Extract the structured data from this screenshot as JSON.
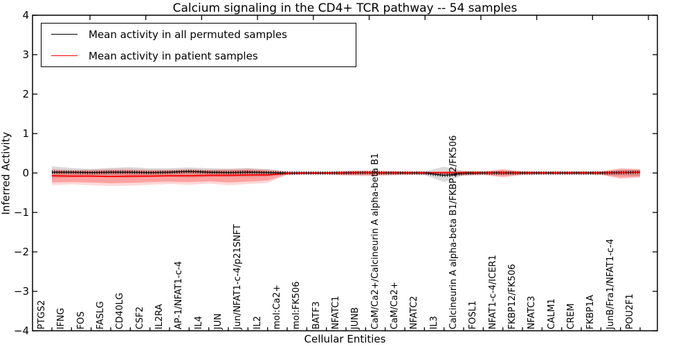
{
  "chart_data": {
    "type": "line",
    "title": "Calcium signaling in the CD4+ TCR pathway -- 54 samples",
    "xlabel": "Cellular Entities",
    "ylabel": "Inferred Activity",
    "ylim": [
      -4,
      4
    ],
    "ytick_labels": [
      "4",
      "3",
      "2",
      "1",
      "0",
      "−1",
      "−2",
      "−3",
      "−4"
    ],
    "grid": false,
    "legend": {
      "position": "upper left",
      "entries": [
        {
          "label": "Mean activity in all permuted samples",
          "color": "#000000"
        },
        {
          "label": "Mean activity in patient samples",
          "color": "#ff0000"
        }
      ]
    },
    "categories": [
      "PTGS2",
      "IFNG",
      "FOS",
      "FASLG",
      "CD40LG",
      "CSF2",
      "IL2RA",
      "AP-1/NFAT1-c-4",
      "IL4",
      "JUN",
      "Jun/NFAT1-c-4/p21SNFT",
      "IL2",
      "mol:Ca2+",
      "mol:FK506",
      "BATF3",
      "NFATC1",
      "JUNB",
      "CaM/Ca2+/Calcineurin A alpha-beta B1",
      "CaM/Ca2+",
      "NFATC2",
      "IL3",
      "Calcineurin A alpha-beta B1/FKBP12/FK506",
      "FOSL1",
      "NFAT1-c-4/ICER1",
      "FKBP12/FK506",
      "NFATC3",
      "CALM1",
      "CREM",
      "FKBP1A",
      "JunB/Fra1/NFAT1-c-4",
      "POU2F1"
    ],
    "series": [
      {
        "name": "Mean activity in all permuted samples",
        "color": "#000000",
        "band_color": "rgba(125,125,125,0.28)",
        "mean": [
          0.02,
          0.02,
          0.01,
          0.02,
          0.02,
          0.01,
          0.02,
          0.04,
          0.02,
          0.01,
          0.02,
          0.01,
          0.0,
          0.0,
          0.0,
          0.0,
          0.01,
          0.0,
          0.0,
          0.0,
          -0.06,
          -0.01,
          0.0,
          0.0,
          0.0,
          0.0,
          0.0,
          0.0,
          0.0,
          0.01,
          0.02
        ],
        "band_upper": [
          0.17,
          0.13,
          0.1,
          0.13,
          0.15,
          0.12,
          0.12,
          0.14,
          0.12,
          0.11,
          0.12,
          0.1,
          0.04,
          0.03,
          0.03,
          0.04,
          0.04,
          0.03,
          0.03,
          0.04,
          0.16,
          0.05,
          0.04,
          0.05,
          0.04,
          0.03,
          0.03,
          0.04,
          0.04,
          0.07,
          0.09
        ],
        "band_lower": [
          -0.13,
          -0.11,
          -0.09,
          -0.11,
          -0.12,
          -0.1,
          -0.1,
          -0.12,
          -0.1,
          -0.1,
          -0.1,
          -0.09,
          -0.04,
          -0.03,
          -0.03,
          -0.04,
          -0.04,
          -0.03,
          -0.03,
          -0.05,
          -0.23,
          -0.06,
          -0.04,
          -0.05,
          -0.04,
          -0.03,
          -0.03,
          -0.04,
          -0.04,
          -0.07,
          -0.09
        ]
      },
      {
        "name": "Mean activity in patient samples",
        "color": "#ff0000",
        "band_color": "rgba(255,0,0,0.25)",
        "outer_band_color": "rgba(255,0,0,0.15)",
        "mean": [
          -0.07,
          -0.08,
          -0.08,
          -0.09,
          -0.08,
          -0.08,
          -0.07,
          -0.07,
          -0.06,
          -0.06,
          -0.05,
          -0.05,
          -0.01,
          0.0,
          0.0,
          0.01,
          0.01,
          0.01,
          0.01,
          0.01,
          0.01,
          0.01,
          0.01,
          0.01,
          0.01,
          0.01,
          0.01,
          0.01,
          0.01,
          0.01,
          0.02
        ],
        "band_upper": [
          0.07,
          0.05,
          0.06,
          0.07,
          0.07,
          0.06,
          0.06,
          0.07,
          0.06,
          0.07,
          0.08,
          0.06,
          0.02,
          0.02,
          0.02,
          0.04,
          0.05,
          0.04,
          0.03,
          0.02,
          0.03,
          0.04,
          0.03,
          0.08,
          0.03,
          0.02,
          0.02,
          0.02,
          0.03,
          0.1,
          0.08
        ],
        "band_lower": [
          -0.24,
          -0.23,
          -0.24,
          -0.26,
          -0.25,
          -0.23,
          -0.22,
          -0.23,
          -0.21,
          -0.24,
          -0.22,
          -0.19,
          -0.04,
          -0.03,
          -0.03,
          -0.05,
          -0.06,
          -0.05,
          -0.04,
          -0.03,
          -0.04,
          -0.05,
          -0.04,
          -0.09,
          -0.04,
          -0.03,
          -0.03,
          -0.03,
          -0.04,
          -0.12,
          -0.09
        ],
        "outer_band_upper": [
          0.11,
          0.08,
          0.09,
          0.11,
          0.11,
          0.09,
          0.09,
          0.11,
          0.09,
          0.1,
          0.12,
          0.09,
          0.03,
          0.03,
          0.03,
          0.06,
          0.07,
          0.06,
          0.04,
          0.03,
          0.04,
          0.06,
          0.04,
          0.11,
          0.04,
          0.03,
          0.03,
          0.03,
          0.04,
          0.13,
          0.11
        ],
        "outer_band_lower": [
          -0.31,
          -0.29,
          -0.31,
          -0.33,
          -0.32,
          -0.3,
          -0.28,
          -0.3,
          -0.27,
          -0.31,
          -0.28,
          -0.25,
          -0.05,
          -0.04,
          -0.04,
          -0.07,
          -0.08,
          -0.07,
          -0.05,
          -0.04,
          -0.05,
          -0.07,
          -0.05,
          -0.12,
          -0.05,
          -0.04,
          -0.04,
          -0.04,
          -0.05,
          -0.15,
          -0.12
        ]
      }
    ]
  }
}
